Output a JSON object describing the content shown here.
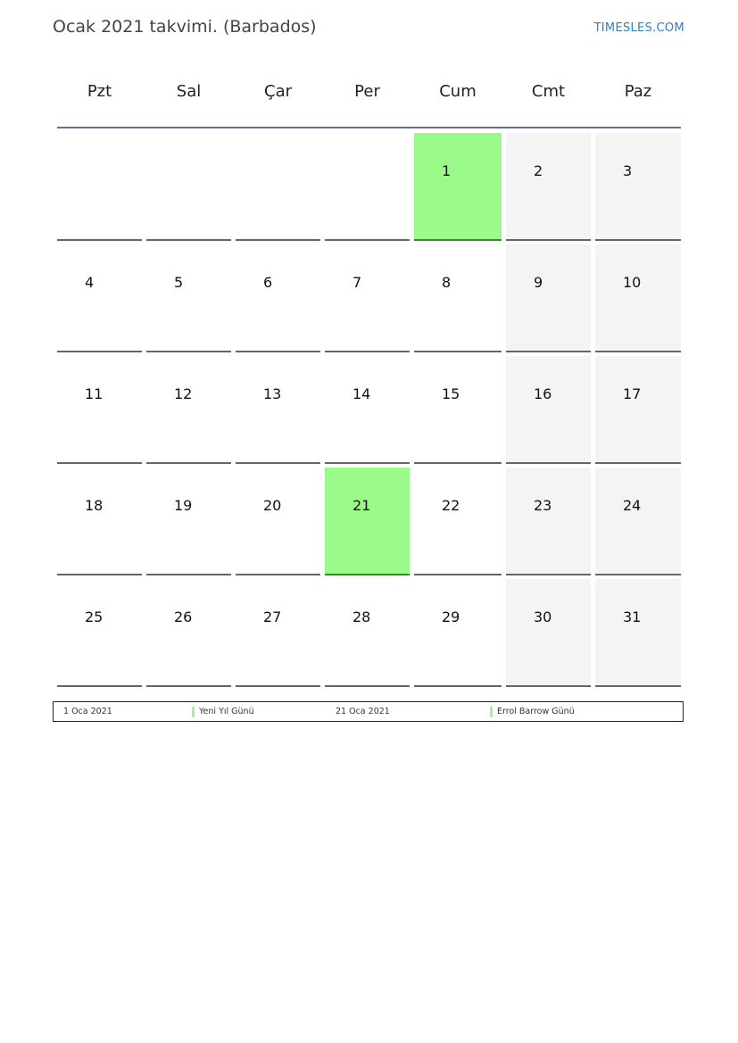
{
  "header": {
    "title": "Ocak 2021 takvimi. (Barbados)",
    "brand": "TIMESLES.COM"
  },
  "weekdays": [
    "Pzt",
    "Sal",
    "Çar",
    "Per",
    "Cum",
    "Cmt",
    "Paz"
  ],
  "colors": {
    "holiday": "#9afa8a",
    "weekend": "#f4f4f4",
    "header_line": "#5a7398"
  },
  "first_weekday_index": 4,
  "days": [
    "1",
    "2",
    "3",
    "4",
    "5",
    "6",
    "7",
    "8",
    "9",
    "10",
    "11",
    "12",
    "13",
    "14",
    "15",
    "16",
    "17",
    "18",
    "19",
    "20",
    "21",
    "22",
    "23",
    "24",
    "25",
    "26",
    "27",
    "28",
    "29",
    "30",
    "31"
  ],
  "holiday_days": [
    1,
    21
  ],
  "legend": [
    {
      "date": "1 Oca 2021",
      "name": "Yeni Yıl Günü"
    },
    {
      "date": "21 Oca 2021",
      "name": "Errol Barrow Günü"
    }
  ]
}
